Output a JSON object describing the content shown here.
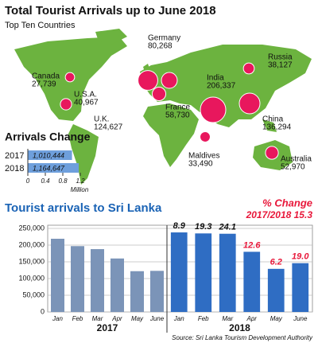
{
  "chart_data": [
    {
      "type": "bubble-map",
      "title": "Total Tourist Arrivals up to June 2018",
      "subtitle": "Top Ten Countries",
      "categories": [
        "Canada",
        "U.S.A.",
        "U.K.",
        "Germany",
        "France",
        "Russia",
        "India",
        "China",
        "Maldives",
        "Australia"
      ],
      "values": [
        27739,
        40967,
        124627,
        80268,
        58730,
        38127,
        206337,
        136294,
        33490,
        52970
      ],
      "value_labels": [
        "27,739",
        "40,967",
        "124,627",
        "80,268",
        "58,730",
        "38,127",
        "206,337",
        "136,294",
        "33,490",
        "52,970"
      ],
      "color": "#e8175d"
    },
    {
      "type": "hbar",
      "title": "Arrivals Change",
      "categories": [
        "2017",
        "2018"
      ],
      "values": [
        1.010444,
        1.164647
      ],
      "value_labels": [
        "1,010,444",
        "1,164,647"
      ],
      "xlim": [
        0,
        1.2
      ],
      "xticks": [
        0,
        0.4,
        0.8,
        1.2
      ],
      "xlabel": "Million",
      "color": "#6e9fdc"
    },
    {
      "type": "bar",
      "title": "Tourist arrivals to Sri Lanka",
      "groups": [
        "2017",
        "2018"
      ],
      "group_colors": [
        "#7b94b8",
        "#2f6dc3"
      ],
      "categories": [
        [
          "Jan",
          "Feb",
          "Mar",
          "Apr",
          "May",
          "June"
        ],
        [
          "Jan",
          "Feb",
          "Mar",
          "Apr",
          "May",
          "June"
        ]
      ],
      "values": [
        [
          219000,
          197000,
          188000,
          160000,
          122000,
          123000
        ],
        [
          238000,
          235000,
          234000,
          180000,
          129000,
          146000
        ]
      ],
      "change_title": "% Change",
      "change_total": "2017/2018 15.3",
      "change_labels": [
        "8.9",
        "19.3",
        "24.1",
        "12.6",
        "6.2",
        "19.0"
      ],
      "ylim": [
        0,
        250000
      ],
      "yticks": [
        0,
        {
          "value": 50000,
          "label": "50,000"
        },
        {
          "value": 100000,
          "label": "100,000"
        },
        {
          "value": 150000,
          "label": "150,000"
        },
        {
          "value": 200000,
          "label": "200,000"
        },
        {
          "value": 250000,
          "label": "250,000"
        }
      ],
      "grid": true,
      "source": "Source: Sri Lanka Tourism Development Authority"
    }
  ]
}
